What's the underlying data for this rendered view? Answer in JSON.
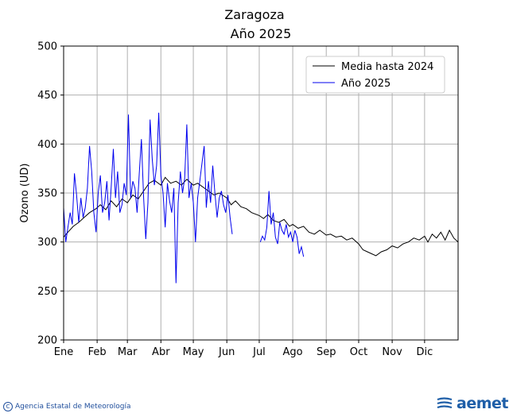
{
  "chart_data": {
    "type": "line",
    "title": "Zaragoza",
    "subtitle": "Año 2025",
    "xlabel": "",
    "ylabel": "Ozono (UD)",
    "ylim": [
      200,
      500
    ],
    "xlim": [
      1,
      366
    ],
    "yticks": [
      200,
      250,
      300,
      350,
      400,
      450,
      500
    ],
    "month_labels": [
      "Ene",
      "Feb",
      "Mar",
      "Abr",
      "May",
      "Jun",
      "Jul",
      "Ago",
      "Sep",
      "Oct",
      "Nov",
      "Dic"
    ],
    "month_start_days": [
      1,
      32,
      60,
      91,
      121,
      152,
      182,
      213,
      244,
      274,
      305,
      335
    ],
    "grid": true,
    "legend_position": "top-right",
    "series": [
      {
        "name": "Media hasta 2024",
        "color": "#000000",
        "x": [
          1,
          5,
          10,
          15,
          20,
          25,
          31,
          35,
          40,
          45,
          50,
          55,
          60,
          65,
          70,
          75,
          80,
          85,
          91,
          95,
          100,
          105,
          110,
          115,
          121,
          125,
          130,
          135,
          140,
          145,
          152,
          156,
          160,
          165,
          170,
          175,
          182,
          186,
          190,
          195,
          200,
          205,
          210,
          213,
          218,
          223,
          228,
          233,
          238,
          244,
          248,
          253,
          258,
          263,
          268,
          274,
          278,
          282,
          286,
          290,
          295,
          300,
          305,
          310,
          315,
          320,
          325,
          330,
          335,
          338,
          342,
          346,
          350,
          354,
          358,
          362,
          366
        ],
        "y": [
          305,
          310,
          316,
          320,
          325,
          330,
          334,
          338,
          333,
          342,
          336,
          344,
          340,
          348,
          344,
          352,
          360,
          363,
          358,
          366,
          360,
          362,
          358,
          364,
          358,
          360,
          356,
          352,
          348,
          350,
          345,
          338,
          342,
          336,
          334,
          330,
          327,
          324,
          328,
          322,
          320,
          323,
          316,
          318,
          314,
          316,
          310,
          308,
          312,
          307,
          308,
          305,
          306,
          302,
          304,
          298,
          292,
          290,
          288,
          286,
          290,
          292,
          296,
          294,
          298,
          300,
          304,
          302,
          306,
          300,
          308,
          304,
          310,
          302,
          312,
          304,
          300
        ]
      },
      {
        "name": "Año 2025",
        "color": "#0000ee",
        "x": [
          1,
          3,
          5,
          7,
          9,
          11,
          13,
          15,
          17,
          19,
          21,
          23,
          25,
          27,
          29,
          31,
          33,
          35,
          37,
          39,
          41,
          43,
          45,
          47,
          49,
          51,
          53,
          55,
          57,
          59,
          61,
          63,
          65,
          67,
          69,
          71,
          73,
          75,
          77,
          79,
          81,
          83,
          85,
          87,
          89,
          91,
          93,
          95,
          97,
          99,
          101,
          103,
          105,
          107,
          109,
          111,
          113,
          115,
          117,
          119,
          121,
          123,
          125,
          127,
          129,
          131,
          133,
          135,
          137,
          139,
          141,
          143,
          145,
          147,
          149,
          151,
          153,
          155,
          157
        ],
        "y": [
          335,
          300,
          315,
          330,
          318,
          370,
          348,
          320,
          345,
          325,
          335,
          355,
          398,
          372,
          330,
          310,
          350,
          368,
          330,
          340,
          362,
          322,
          356,
          395,
          345,
          372,
          330,
          338,
          360,
          348,
          430,
          345,
          362,
          355,
          330,
          370,
          405,
          345,
          303,
          340,
          425,
          385,
          358,
          378,
          432,
          368,
          350,
          315,
          360,
          342,
          330,
          355,
          258,
          340,
          372,
          350,
          365,
          420,
          345,
          360,
          340,
          300,
          345,
          362,
          380,
          398,
          335,
          362,
          340,
          378,
          350,
          325,
          345,
          352,
          338,
          330,
          348,
          325,
          308
        ],
        "gap_after_index": 78,
        "x2": [
          183,
          185,
          187,
          189,
          191,
          193,
          195,
          197,
          199,
          201,
          203,
          205,
          207,
          209,
          211,
          213,
          215,
          217,
          219,
          221,
          223
        ],
        "y2": [
          300,
          306,
          302,
          315,
          352,
          318,
          330,
          305,
          298,
          320,
          312,
          308,
          318,
          305,
          310,
          300,
          312,
          305,
          288,
          295,
          285
        ]
      }
    ]
  },
  "footer": {
    "credit": "Agencia Estatal de Meteorología",
    "logo_text": "aemet"
  }
}
